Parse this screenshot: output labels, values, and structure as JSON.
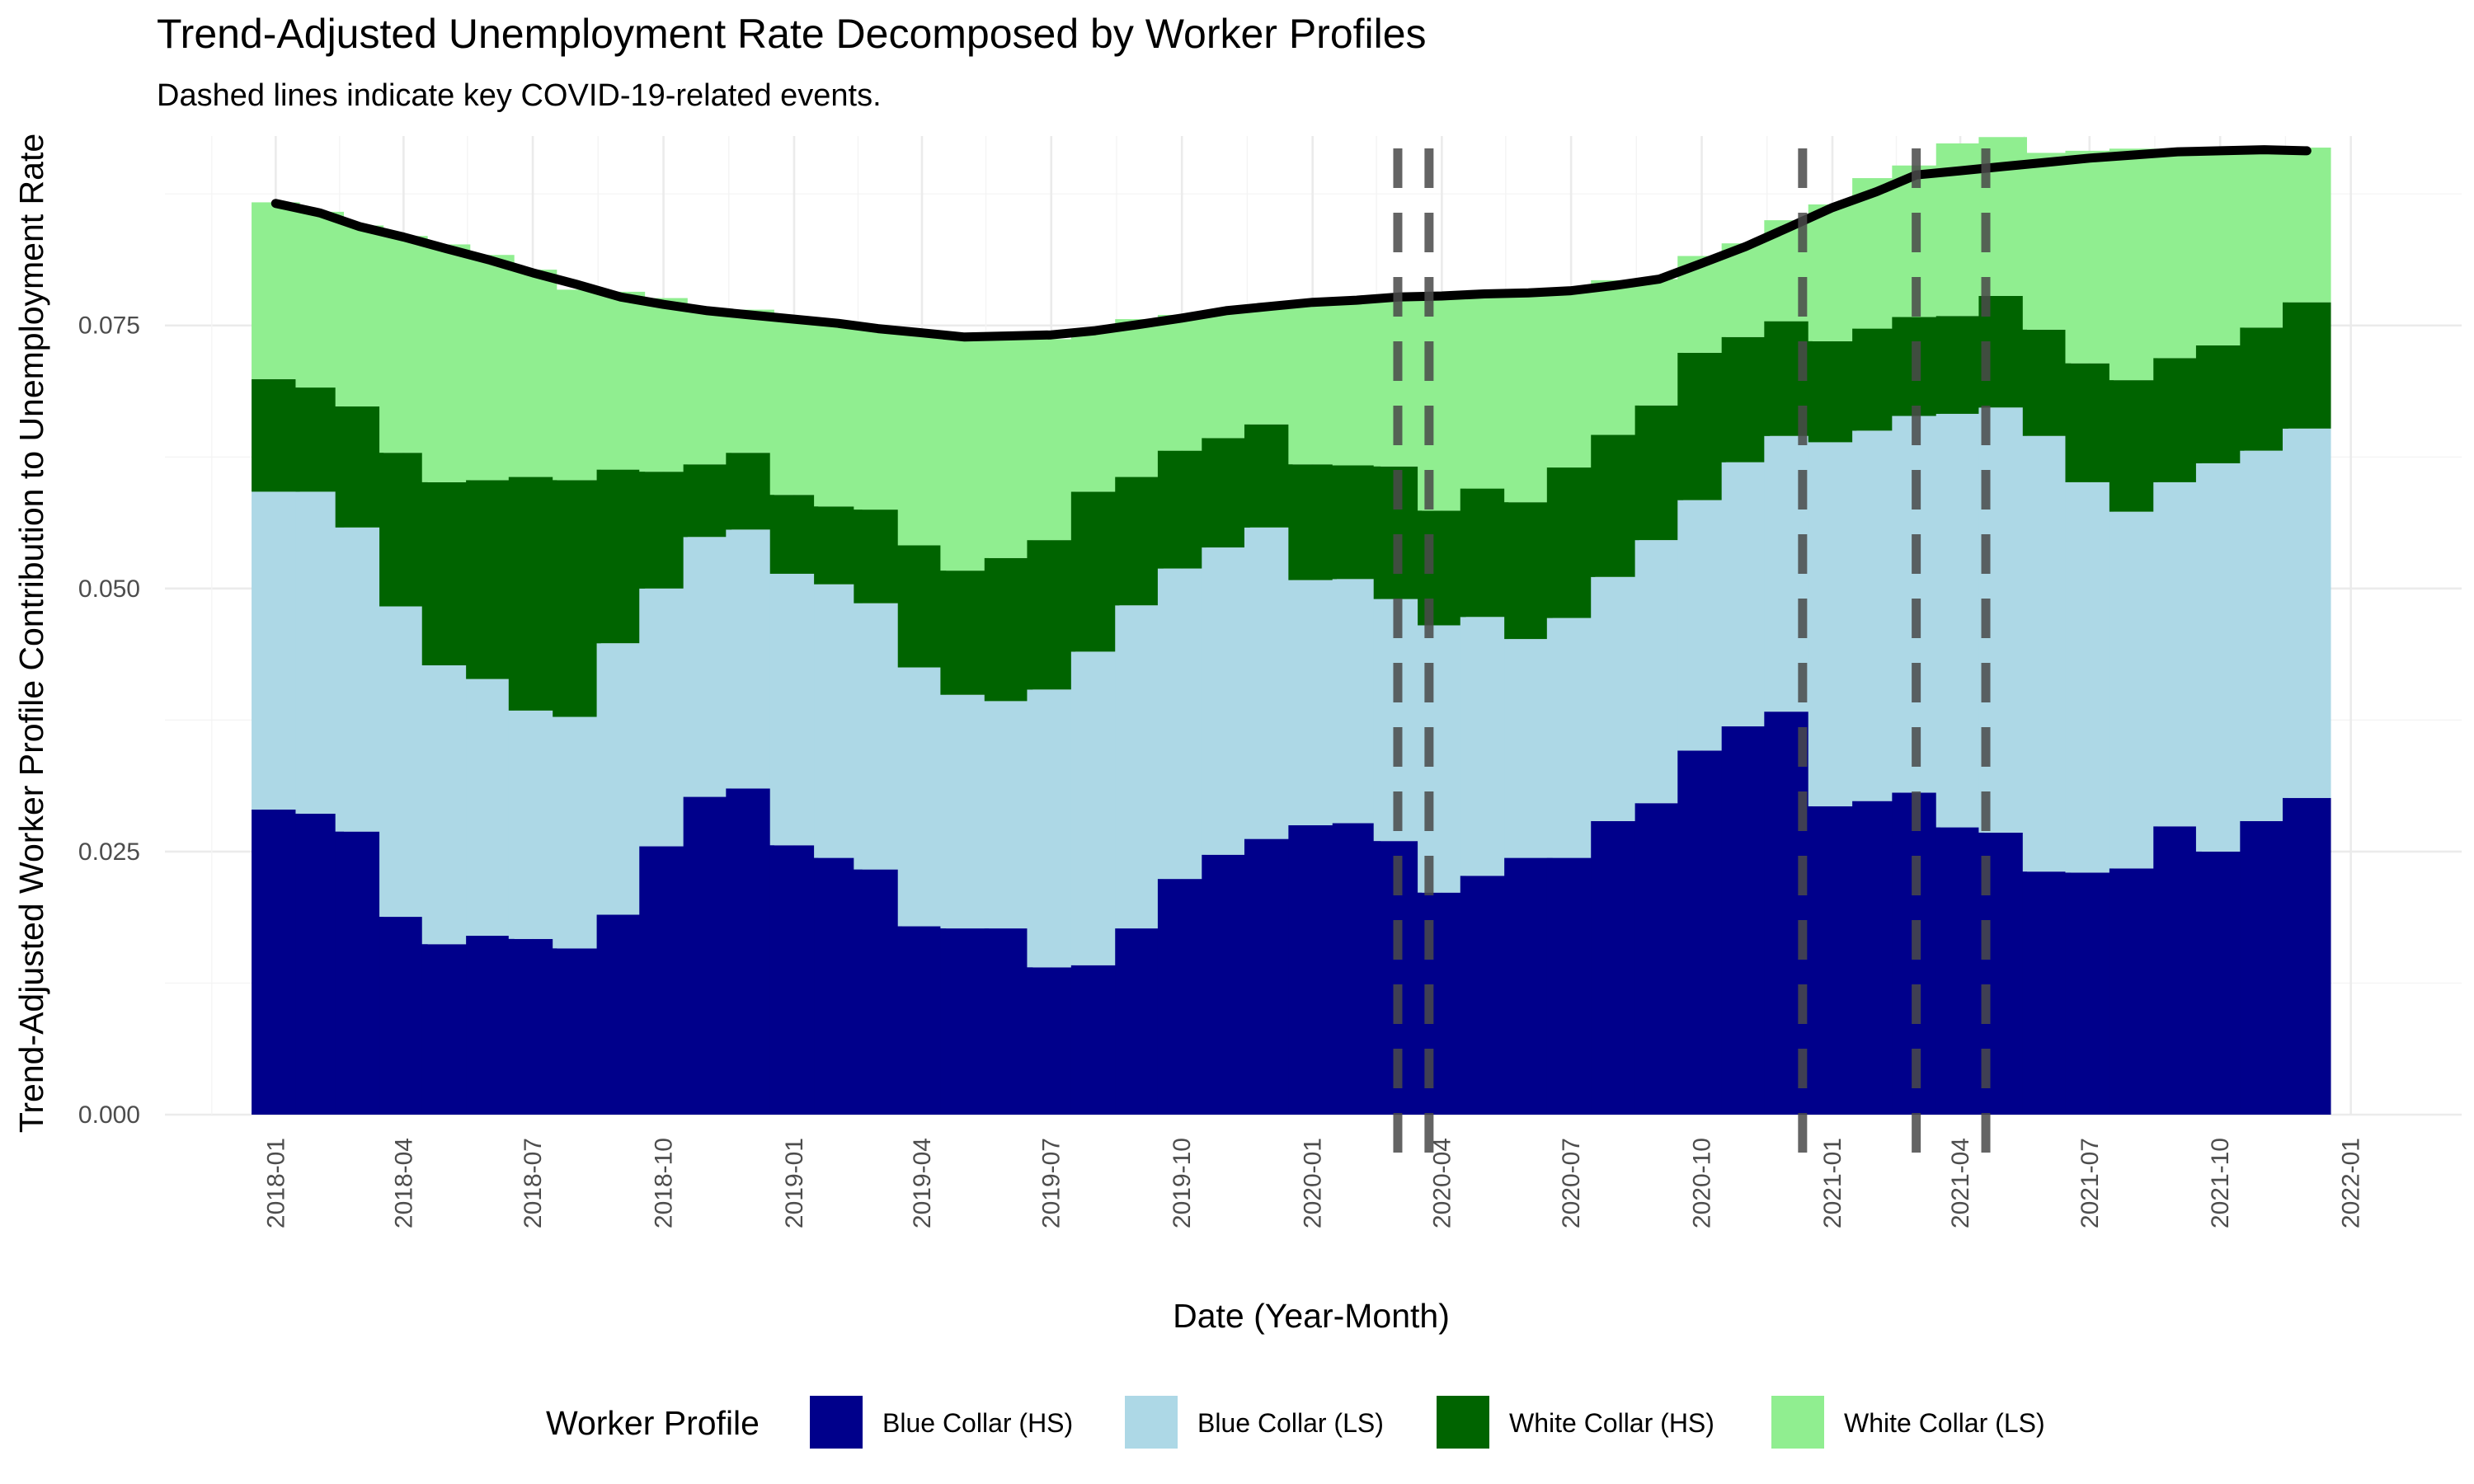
{
  "chart_data": {
    "type": "bar",
    "stacked": true,
    "title": "Trend-Adjusted Unemployment Rate Decomposed by Worker Profiles",
    "subtitle": "Dashed lines indicate key COVID-19-related events.",
    "xlabel": "Date (Year-Month)",
    "ylabel": "Trend-Adjusted Worker Profile Contribution to Unemployment Rate",
    "ylim": [
      0,
      0.093
    ],
    "y_ticks": [
      "0.000",
      "0.025",
      "0.050",
      "0.075"
    ],
    "y_tick_values": [
      0,
      0.025,
      0.05,
      0.075
    ],
    "x_ticks": [
      "2018-01",
      "2018-04",
      "2018-07",
      "2018-10",
      "2019-01",
      "2019-04",
      "2019-07",
      "2019-10",
      "2020-01",
      "2020-04",
      "2020-07",
      "2020-10",
      "2021-01",
      "2021-04",
      "2021-07",
      "2021-10",
      "2022-01"
    ],
    "x_tick_dates": [
      "2018-01-01",
      "2018-04-01",
      "2018-07-01",
      "2018-10-01",
      "2019-01-01",
      "2019-04-01",
      "2019-07-01",
      "2019-10-01",
      "2020-01-01",
      "2020-04-01",
      "2020-07-01",
      "2020-10-01",
      "2021-01-01",
      "2021-04-01",
      "2021-07-01",
      "2021-10-01",
      "2022-01-01"
    ],
    "x_range": [
      "2017-10-15",
      "2022-03-20"
    ],
    "grid": true,
    "legend_position": "bottom",
    "legend_title": "Worker Profile",
    "dates": [
      "2018-01-01",
      "2018-02-01",
      "2018-03-01",
      "2018-04-01",
      "2018-05-01",
      "2018-06-01",
      "2018-07-01",
      "2018-08-01",
      "2018-09-01",
      "2018-10-01",
      "2018-11-01",
      "2018-12-01",
      "2019-01-01",
      "2019-02-01",
      "2019-03-01",
      "2019-04-01",
      "2019-05-01",
      "2019-06-01",
      "2019-07-01",
      "2019-08-01",
      "2019-09-01",
      "2019-10-01",
      "2019-11-01",
      "2019-12-01",
      "2020-01-01",
      "2020-02-01",
      "2020-03-01",
      "2020-04-01",
      "2020-05-01",
      "2020-06-01",
      "2020-07-01",
      "2020-08-01",
      "2020-09-01",
      "2020-10-01",
      "2020-11-01",
      "2020-12-01",
      "2021-01-01",
      "2021-02-01",
      "2021-03-01",
      "2021-04-01",
      "2021-05-01",
      "2021-06-01",
      "2021-07-01",
      "2021-08-01",
      "2021-09-01",
      "2021-10-01",
      "2021-11-01",
      "2021-12-01"
    ],
    "series": [
      {
        "name": "Blue Collar (HS)",
        "color": "#00008B",
        "values": [
          0.029,
          0.0286,
          0.0269,
          0.0188,
          0.0162,
          0.017,
          0.0167,
          0.0158,
          0.019,
          0.0255,
          0.0302,
          0.031,
          0.0256,
          0.0244,
          0.0233,
          0.0179,
          0.0177,
          0.0177,
          0.014,
          0.0142,
          0.0177,
          0.0224,
          0.0247,
          0.0262,
          0.0275,
          0.0277,
          0.026,
          0.0211,
          0.0227,
          0.0244,
          0.0244,
          0.0279,
          0.0296,
          0.0346,
          0.0369,
          0.0383,
          0.0293,
          0.0298,
          0.0306,
          0.0273,
          0.0268,
          0.0231,
          0.023,
          0.0234,
          0.0274,
          0.025,
          0.0279,
          0.0301
        ]
      },
      {
        "name": "Blue Collar (LS)",
        "color": "#ADD8E6",
        "values": [
          0.0302,
          0.0306,
          0.0289,
          0.0295,
          0.0265,
          0.0244,
          0.0217,
          0.022,
          0.0258,
          0.0245,
          0.0247,
          0.0246,
          0.0258,
          0.026,
          0.0253,
          0.0246,
          0.0222,
          0.0216,
          0.0264,
          0.0298,
          0.0307,
          0.0295,
          0.0292,
          0.0296,
          0.0233,
          0.0232,
          0.023,
          0.0254,
          0.0246,
          0.0208,
          0.0228,
          0.0232,
          0.025,
          0.0238,
          0.0251,
          0.0262,
          0.0346,
          0.0352,
          0.0358,
          0.0393,
          0.0404,
          0.0414,
          0.0371,
          0.0339,
          0.0327,
          0.0369,
          0.0352,
          0.0351
        ]
      },
      {
        "name": "White Collar (HS)",
        "color": "#006400",
        "values": [
          0.0107,
          0.0099,
          0.0115,
          0.0146,
          0.0174,
          0.0189,
          0.0222,
          0.0225,
          0.0165,
          0.0111,
          0.0069,
          0.0073,
          0.0075,
          0.0074,
          0.0089,
          0.0116,
          0.0118,
          0.0136,
          0.0142,
          0.0152,
          0.0122,
          0.0112,
          0.0104,
          0.0098,
          0.011,
          0.0108,
          0.0126,
          0.0109,
          0.0122,
          0.013,
          0.0143,
          0.0135,
          0.0128,
          0.014,
          0.0119,
          0.0109,
          0.0096,
          0.0097,
          0.0094,
          0.0093,
          0.0106,
          0.0101,
          0.0113,
          0.0125,
          0.0118,
          0.0112,
          0.0117,
          0.012
        ]
      },
      {
        "name": "White Collar (LS)",
        "color": "#90EE90",
        "values": [
          0.0168,
          0.0167,
          0.0172,
          0.0206,
          0.0226,
          0.0214,
          0.0197,
          0.0181,
          0.0169,
          0.0165,
          0.0146,
          0.0136,
          0.0165,
          0.0172,
          0.0171,
          0.02,
          0.022,
          0.0208,
          0.0191,
          0.0153,
          0.015,
          0.0129,
          0.012,
          0.011,
          0.0155,
          0.016,
          0.0159,
          0.0204,
          0.0186,
          0.0196,
          0.017,
          0.0147,
          0.012,
          0.0092,
          0.0089,
          0.0096,
          0.013,
          0.0143,
          0.0144,
          0.0164,
          0.0151,
          0.0168,
          0.0202,
          0.022,
          0.0198,
          0.0187,
          0.0172,
          0.0147
        ]
      }
    ],
    "total_line": {
      "color": "#000000",
      "values": [
        0.0866,
        0.0857,
        0.0844,
        0.0834,
        0.0823,
        0.0812,
        0.08,
        0.0789,
        0.0777,
        0.077,
        0.0764,
        0.076,
        0.0756,
        0.0752,
        0.0747,
        0.0743,
        0.0739,
        0.074,
        0.0741,
        0.0745,
        0.0751,
        0.0757,
        0.0764,
        0.0768,
        0.0772,
        0.0774,
        0.0777,
        0.0778,
        0.078,
        0.0781,
        0.0783,
        0.0788,
        0.0794,
        0.0809,
        0.0825,
        0.0843,
        0.0862,
        0.0877,
        0.0893,
        0.0897,
        0.0901,
        0.0905,
        0.0909,
        0.0912,
        0.0915,
        0.0916,
        0.0917,
        0.0916
      ]
    },
    "event_lines": [
      "2020-03-01",
      "2020-03-23",
      "2020-12-11",
      "2021-03-01",
      "2021-04-19"
    ]
  }
}
